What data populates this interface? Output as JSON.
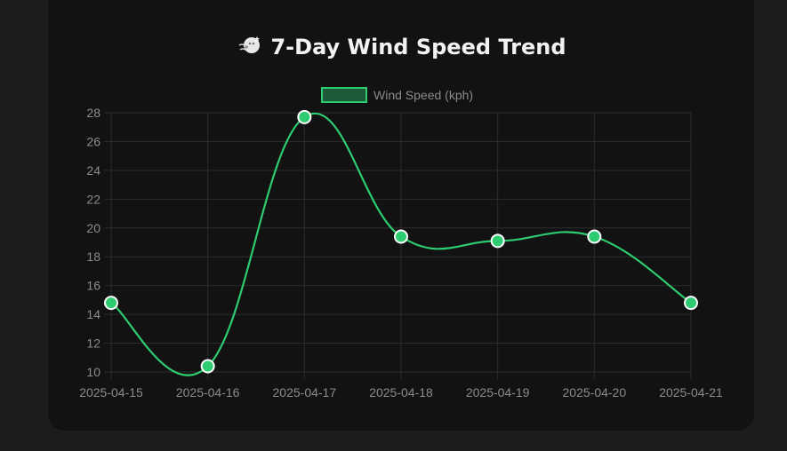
{
  "header": {
    "title": "7-Day Wind Speed Trend",
    "icon": "wind-face-icon"
  },
  "colors": {
    "line": "#2ecc71",
    "point_border": "#ffffff",
    "legend_fill": "#1e5a37",
    "grid": "#2c2c2c",
    "tick_text": "#8c8c8c",
    "card_bg": "#121212",
    "page_bg": "#1c1c1c"
  },
  "chart_data": {
    "type": "line",
    "categories": [
      "2025-04-15",
      "2025-04-16",
      "2025-04-17",
      "2025-04-18",
      "2025-04-19",
      "2025-04-20",
      "2025-04-21"
    ],
    "series": [
      {
        "name": "Wind Speed (kph)",
        "values": [
          14.8,
          10.4,
          27.7,
          19.4,
          19.1,
          19.4,
          14.8
        ]
      }
    ],
    "ylim": [
      10,
      28
    ],
    "yticks": [
      10,
      12,
      14,
      16,
      18,
      20,
      22,
      24,
      26,
      28
    ],
    "grid": true,
    "smooth": true,
    "legend": "top-center"
  }
}
